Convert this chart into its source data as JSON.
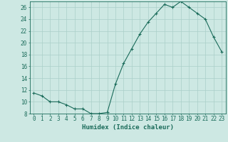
{
  "x": [
    0,
    1,
    2,
    3,
    4,
    5,
    6,
    7,
    8,
    9,
    10,
    11,
    12,
    13,
    14,
    15,
    16,
    17,
    18,
    19,
    20,
    21,
    22,
    23
  ],
  "y": [
    11.5,
    11.0,
    10.0,
    10.0,
    9.5,
    8.8,
    8.8,
    8.0,
    8.0,
    8.2,
    13.0,
    16.5,
    19.0,
    21.5,
    23.5,
    25.0,
    26.5,
    26.0,
    27.0,
    26.0,
    25.0,
    24.0,
    21.0,
    18.5
  ],
  "line_color": "#1a6b5a",
  "marker": "+",
  "bg_color": "#cde8e3",
  "grid_color": "#aacfc8",
  "xlabel": "Humidex (Indice chaleur)",
  "ylim": [
    8,
    27
  ],
  "xlim": [
    -0.5,
    23.5
  ],
  "yticks": [
    8,
    10,
    12,
    14,
    16,
    18,
    20,
    22,
    24,
    26
  ],
  "xticks": [
    0,
    1,
    2,
    3,
    4,
    5,
    6,
    7,
    8,
    9,
    10,
    11,
    12,
    13,
    14,
    15,
    16,
    17,
    18,
    19,
    20,
    21,
    22,
    23
  ],
  "tick_fontsize": 5.5,
  "xlabel_fontsize": 6.5
}
